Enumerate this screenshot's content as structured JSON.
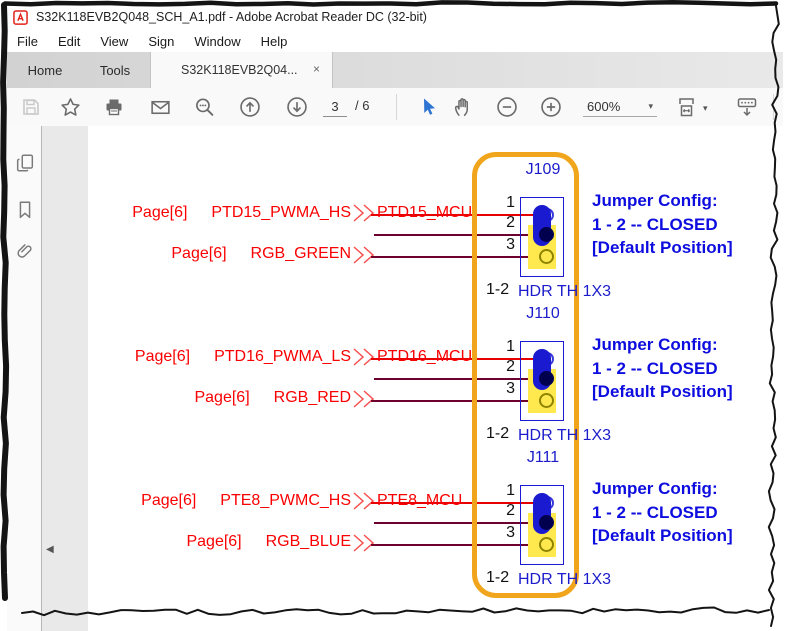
{
  "window": {
    "title": "S32K118EVB2Q048_SCH_A1.pdf - Adobe Acrobat Reader DC (32-bit)"
  },
  "menu": {
    "items": [
      "File",
      "Edit",
      "View",
      "Sign",
      "Window",
      "Help"
    ]
  },
  "tabs": {
    "home": "Home",
    "tools": "Tools",
    "document": "S32K118EVB2Q04...",
    "close_glyph": "×"
  },
  "toolbar": {
    "page_current": "3",
    "page_separator": "/",
    "page_total": "6",
    "zoom_level": "600%",
    "caret_glyph": "▾"
  },
  "panel": {
    "collapse_glyph": "◀"
  },
  "schematic": {
    "rows": [
      {
        "page_ref": "Page[6]",
        "signal": "PTD15_PWMA_HS",
        "net_label": "PTD15_MCU",
        "page_ref2": "Page[6]",
        "rgb_signal": "RGB_GREEN",
        "jumper_id": "J109",
        "pin_labels": [
          "1",
          "2",
          "3"
        ],
        "closed_pins": "1-2",
        "part_label": "HDR TH 1X3",
        "config": [
          "Jumper Config:",
          "1 - 2 -- CLOSED",
          "[Default Position]"
        ]
      },
      {
        "page_ref": "Page[6]",
        "signal": "PTD16_PWMA_LS",
        "net_label": "PTD16_MCU",
        "page_ref2": "Page[6]",
        "rgb_signal": "RGB_RED",
        "jumper_id": "J110",
        "pin_labels": [
          "1",
          "2",
          "3"
        ],
        "closed_pins": "1-2",
        "part_label": "HDR TH 1X3",
        "config": [
          "Jumper Config:",
          "1 - 2 -- CLOSED",
          "[Default Position]"
        ]
      },
      {
        "page_ref": "Page[6]",
        "signal": "PTE8_PWMC_HS",
        "net_label": "PTE8_MCU",
        "page_ref2": "Page[6]",
        "rgb_signal": "RGB_BLUE",
        "jumper_id": "J111",
        "pin_labels": [
          "1",
          "2",
          "3"
        ],
        "closed_pins": "1-2",
        "part_label": "HDR TH 1X3",
        "config": [
          "Jumper Config:",
          "1 - 2 -- CLOSED",
          "[Default Position]"
        ]
      }
    ],
    "colors": {
      "signal_red": "#fa0000",
      "wire_maroon": "#6e0030",
      "config_blue": "#0d0de0",
      "schematic_blue": "#1c1ccc",
      "highlight_yellow": "#ffe94e",
      "callout_orange": "#f0a51c",
      "jumper_navy": "#00004f"
    }
  }
}
